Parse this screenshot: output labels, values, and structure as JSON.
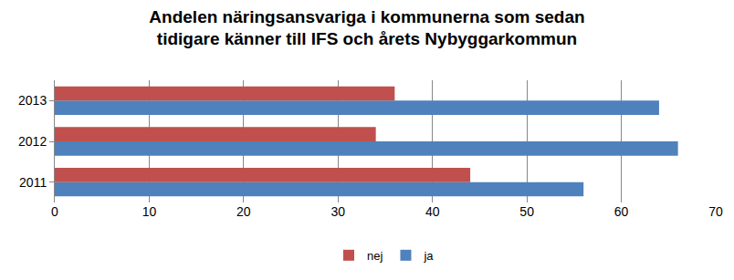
{
  "chart_data": {
    "type": "bar",
    "orientation": "horizontal",
    "title": "Andelen näringsansvariga i kommunerna som sedan\ntidigare känner till IFS och årets Nybyggarkommun",
    "categories": [
      "2011",
      "2012",
      "2013"
    ],
    "series": [
      {
        "name": "nej",
        "color": "#C0504D",
        "values": [
          44,
          34,
          36
        ]
      },
      {
        "name": "ja",
        "color": "#4F81BD",
        "values": [
          56,
          66,
          64
        ]
      }
    ],
    "xlim": [
      0,
      70
    ],
    "xticks": [
      0,
      10,
      20,
      30,
      40,
      50,
      60,
      70
    ],
    "grid": true,
    "legend": "bottom"
  }
}
